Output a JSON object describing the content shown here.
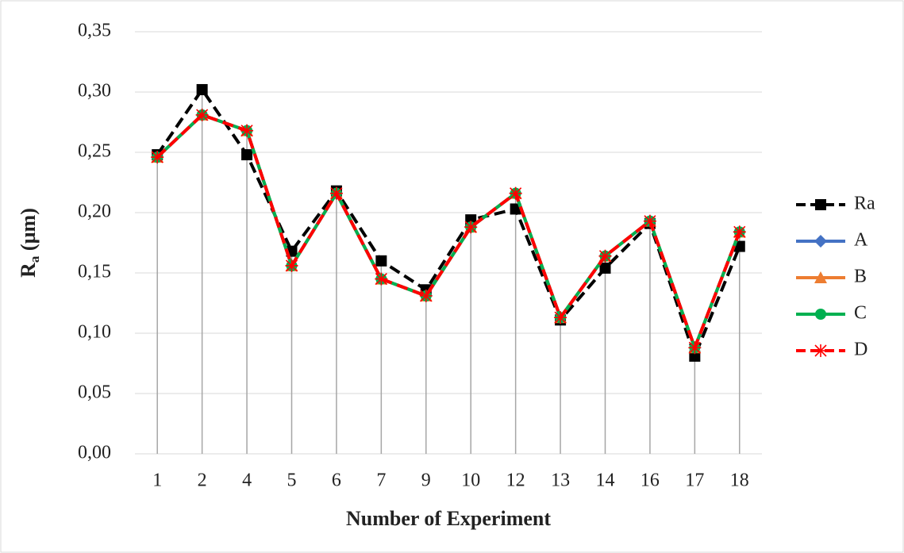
{
  "chart_data": {
    "type": "line",
    "x_label": "Number of Experiment",
    "y_label": {
      "main": "R",
      "sub": "a",
      "unit": " (µm)"
    },
    "categories": [
      "1",
      "2",
      "4",
      "5",
      "6",
      "7",
      "9",
      "10",
      "12",
      "13",
      "14",
      "16",
      "17",
      "18"
    ],
    "series": [
      {
        "name": "Ra",
        "color": "#000000",
        "marker": "square",
        "dashed": true,
        "values": [
          0.248,
          0.302,
          0.248,
          0.168,
          0.218,
          0.16,
          0.136,
          0.194,
          0.203,
          0.111,
          0.154,
          0.191,
          0.081,
          0.172
        ]
      },
      {
        "name": "A",
        "color": "#4472c4",
        "marker": "diamond",
        "dashed": false,
        "values": [
          0.246,
          0.281,
          0.268,
          0.156,
          0.216,
          0.145,
          0.131,
          0.188,
          0.216,
          0.113,
          0.164,
          0.193,
          0.088,
          0.184
        ]
      },
      {
        "name": "B",
        "color": "#ed7d31",
        "marker": "triangle",
        "dashed": false,
        "values": [
          0.246,
          0.281,
          0.268,
          0.156,
          0.216,
          0.145,
          0.131,
          0.188,
          0.216,
          0.113,
          0.164,
          0.193,
          0.088,
          0.184
        ]
      },
      {
        "name": "C",
        "color": "#00b050",
        "marker": "circle",
        "dashed": false,
        "values": [
          0.246,
          0.281,
          0.268,
          0.156,
          0.216,
          0.145,
          0.131,
          0.188,
          0.216,
          0.113,
          0.164,
          0.193,
          0.088,
          0.184
        ]
      },
      {
        "name": "D",
        "color": "#ff0000",
        "marker": "asterisk",
        "dashed": true,
        "values": [
          0.246,
          0.281,
          0.268,
          0.156,
          0.216,
          0.145,
          0.131,
          0.188,
          0.216,
          0.113,
          0.164,
          0.193,
          0.088,
          0.184
        ]
      }
    ],
    "ylim": [
      0,
      0.35
    ],
    "yticks": [
      {
        "value": 0,
        "label": "0,00"
      },
      {
        "value": 0.05,
        "label": "0,05"
      },
      {
        "value": 0.1,
        "label": "0,10"
      },
      {
        "value": 0.15,
        "label": "0,15"
      },
      {
        "value": 0.2,
        "label": "0,20"
      },
      {
        "value": 0.25,
        "label": "0,25"
      },
      {
        "value": 0.3,
        "label": "0,30"
      },
      {
        "value": 0.35,
        "label": "0,35"
      }
    ],
    "grid": true,
    "legend": "right"
  }
}
